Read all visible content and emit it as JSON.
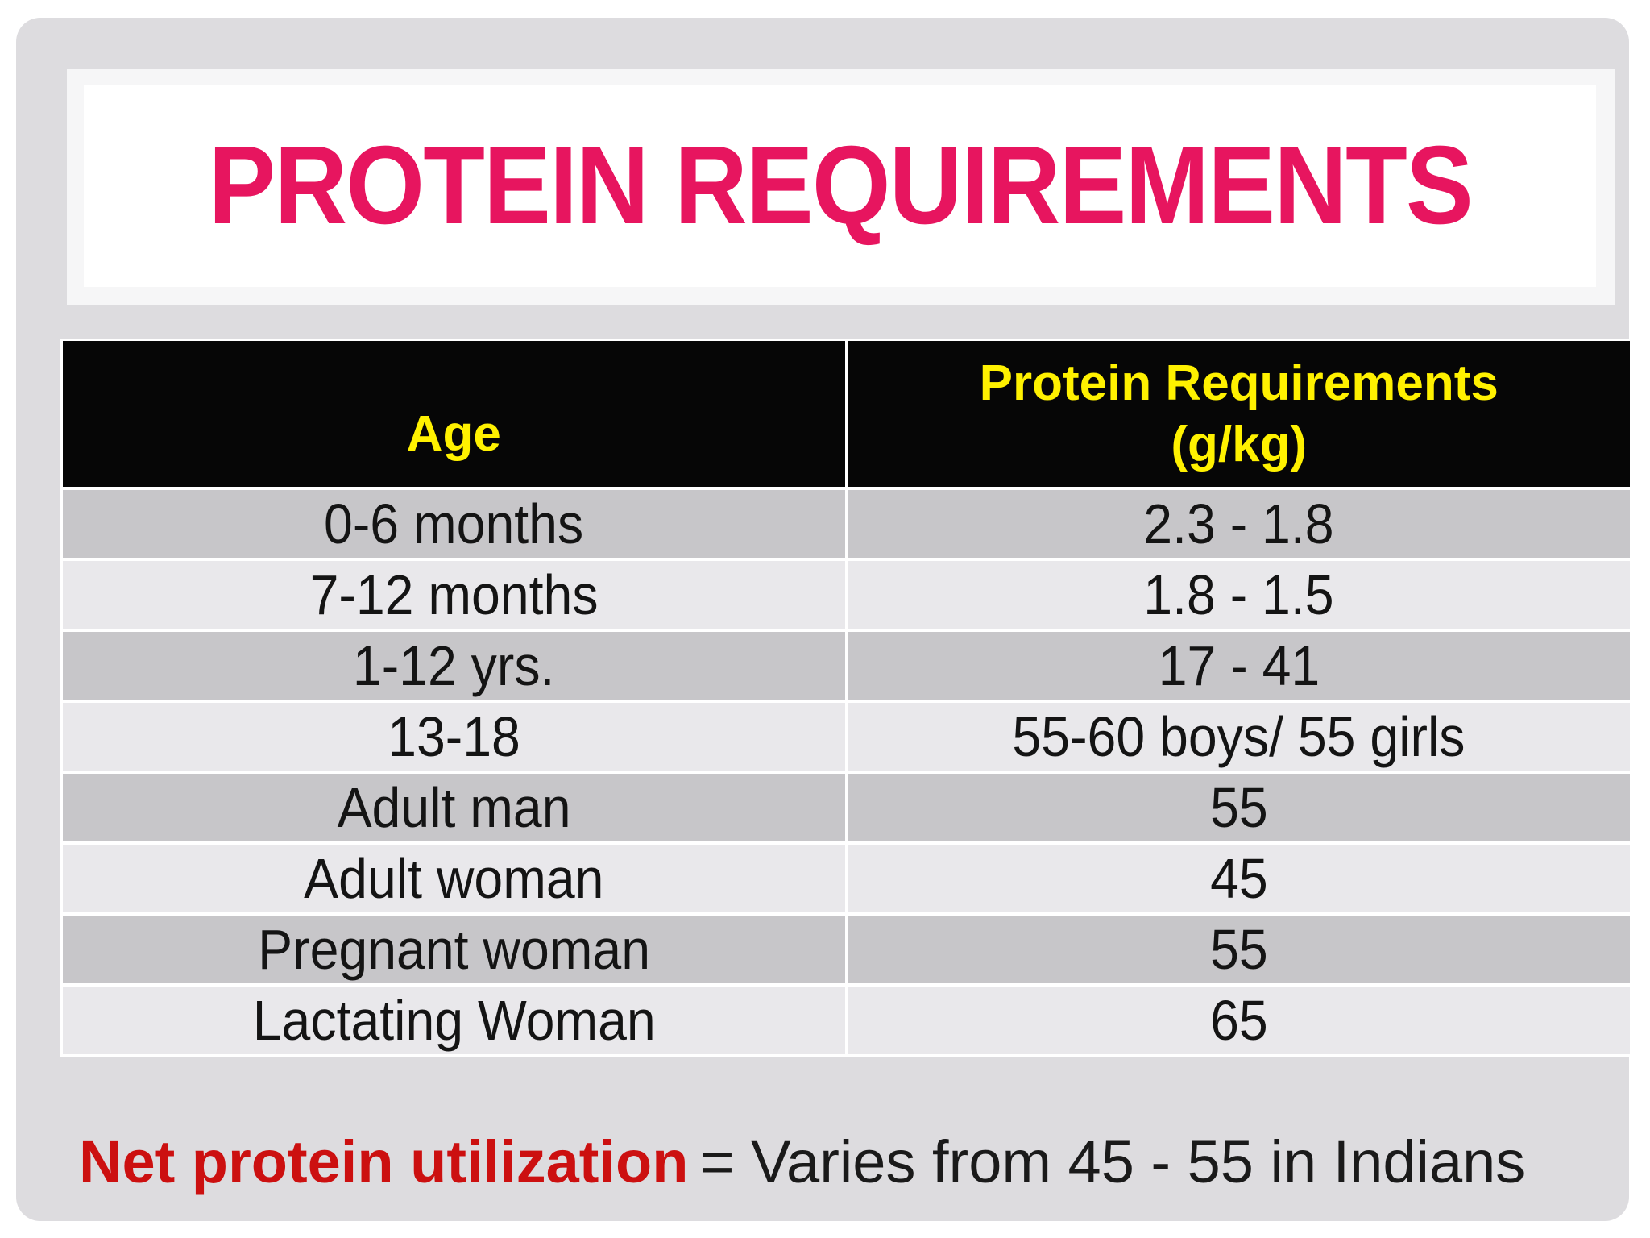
{
  "title": "PROTEIN REQUIREMENTS",
  "table": {
    "headers": {
      "col1": "Age",
      "col2_line1": "Protein Requirements",
      "col2_line2": "(g/kg)"
    },
    "rows": [
      {
        "age": "0-6 months",
        "requirement": "2.3 - 1.8"
      },
      {
        "age": "7-12 months",
        "requirement": "1.8 - 1.5"
      },
      {
        "age": "1-12 yrs.",
        "requirement": "17 - 41"
      },
      {
        "age": "13-18",
        "requirement": "55-60 boys/ 55 girls"
      },
      {
        "age": "Adult man",
        "requirement": "55"
      },
      {
        "age": "Adult woman",
        "requirement": "45"
      },
      {
        "age": "Pregnant woman",
        "requirement": "55"
      },
      {
        "age": "Lactating Woman",
        "requirement": "65"
      }
    ]
  },
  "note": {
    "term": "Net protein utilization",
    "value": "= Varies from 45 - 55 in Indians"
  },
  "colors": {
    "title_pink": "#e7155f",
    "header_bg": "#060606",
    "header_yellow": "#fff100",
    "row_dark": "#c7c6c9",
    "row_light": "#e9e8eb",
    "note_red": "#cc1010",
    "card_gray": "#dddcdf"
  }
}
